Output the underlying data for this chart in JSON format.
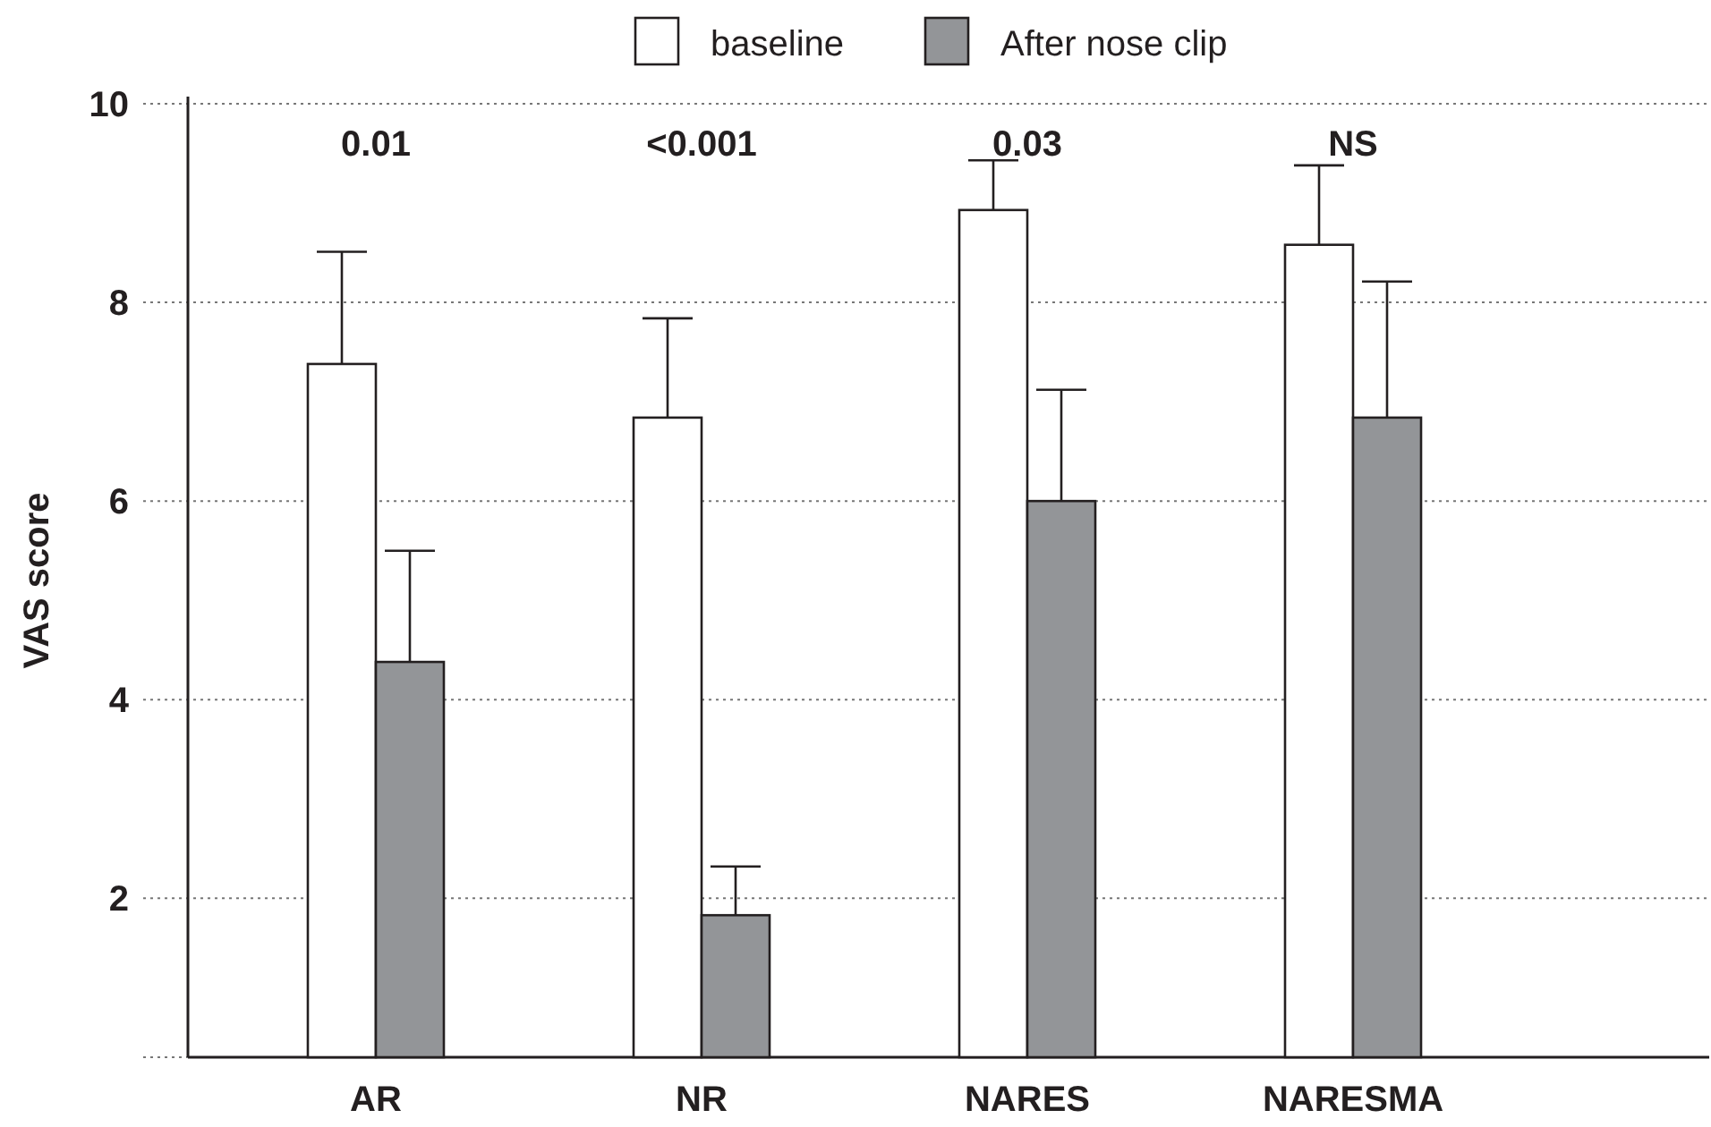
{
  "chart_data": {
    "type": "bar",
    "ylabel": "VAS score",
    "categories": [
      "AR",
      "NR",
      "NARES",
      "NARESMA"
    ],
    "series": [
      {
        "name": "baseline",
        "color": "#ffffff",
        "values": [
          7.38,
          6.84,
          8.93,
          8.58
        ],
        "errors": [
          [
            7.38,
            8.51
          ],
          [
            6.84,
            7.84
          ],
          [
            8.93,
            9.43
          ],
          [
            8.58,
            9.38
          ]
        ]
      },
      {
        "name": "After nose clip",
        "color": "#939598",
        "values": [
          4.38,
          1.83,
          6.0,
          6.84
        ],
        "errors": [
          [
            4.38,
            5.5
          ],
          [
            1.83,
            2.32
          ],
          [
            6.0,
            7.12
          ],
          [
            6.84,
            8.21
          ]
        ]
      }
    ],
    "ylim": [
      0.4,
      10
    ],
    "yticks": [
      2,
      4,
      6,
      8,
      10
    ],
    "grid": "y",
    "legend": "top",
    "annotations": [
      "0.01",
      "<0.001",
      "0.03",
      "NS"
    ]
  }
}
